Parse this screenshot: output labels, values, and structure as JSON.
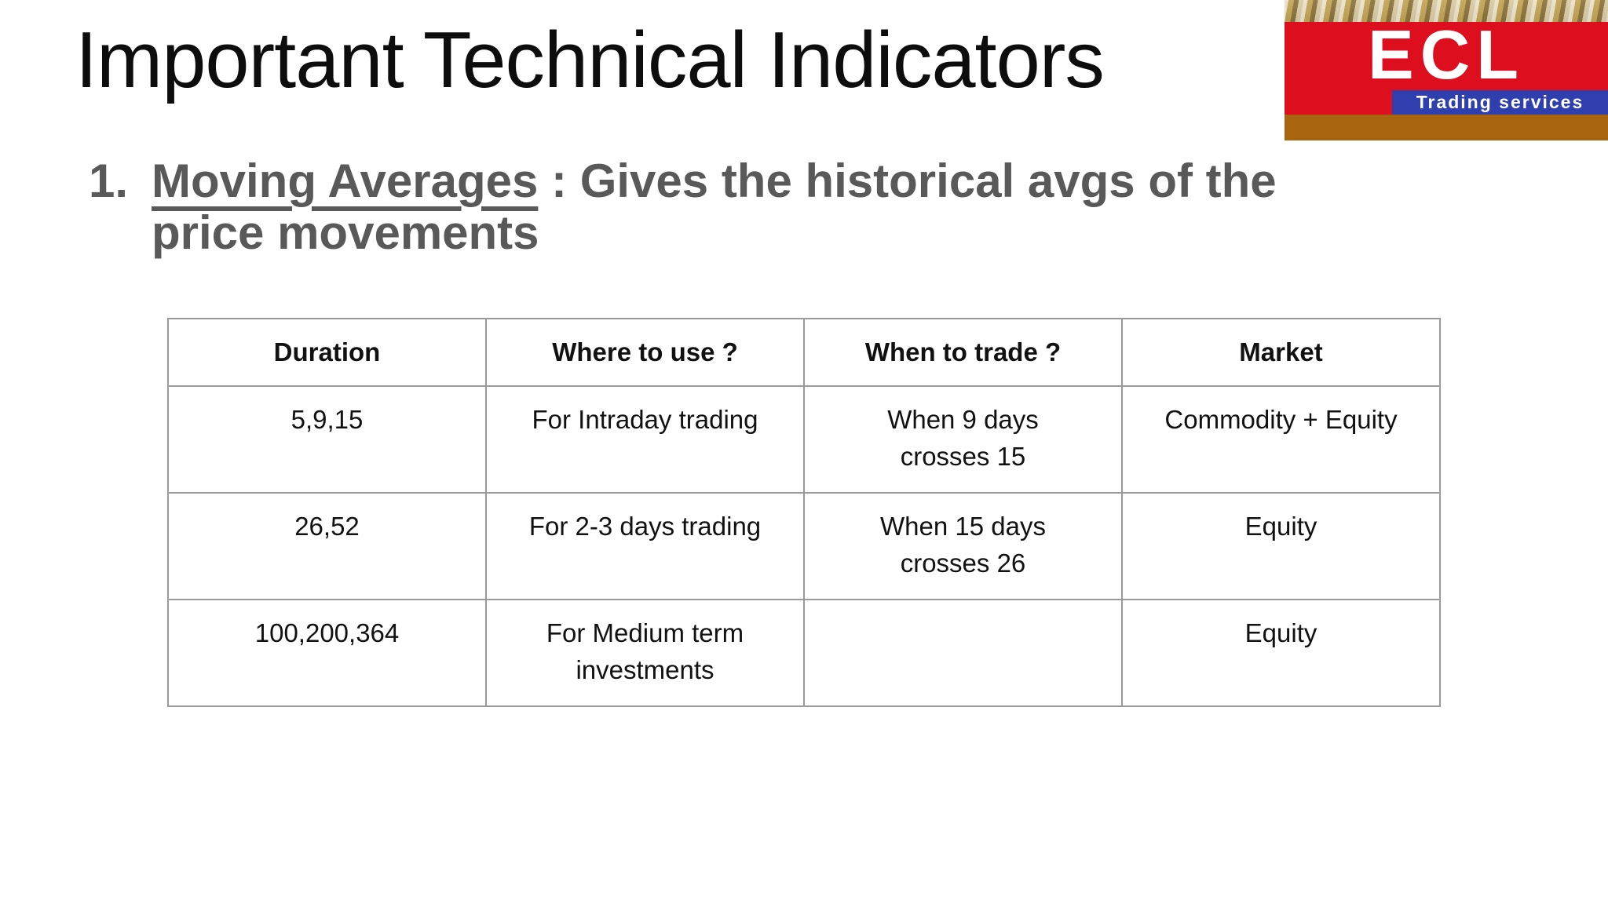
{
  "slide": {
    "title": "Important Technical Indicators"
  },
  "logo": {
    "name": "ECL",
    "tagline": "Trading services",
    "colors": {
      "red": "#dd0f1e",
      "blue": "#2f3fae",
      "brown": "#a8640f"
    }
  },
  "bullet": {
    "number": "1.",
    "term": "Moving Averages",
    "rest_line1": " : Gives the historical avgs of the",
    "line2": "price movements"
  },
  "table": {
    "headers": [
      "Duration",
      "Where to use ?",
      "When to trade ?",
      "Market"
    ],
    "rows": [
      [
        "5,9,15",
        "For Intraday trading",
        "When 9 days\ncrosses 15",
        "Commodity + Equity"
      ],
      [
        "26,52",
        "For 2-3 days trading",
        "When 15 days\ncrosses 26",
        "Equity"
      ],
      [
        "100,200,364",
        "For Medium term\ninvestments",
        "",
        "Equity"
      ]
    ]
  }
}
